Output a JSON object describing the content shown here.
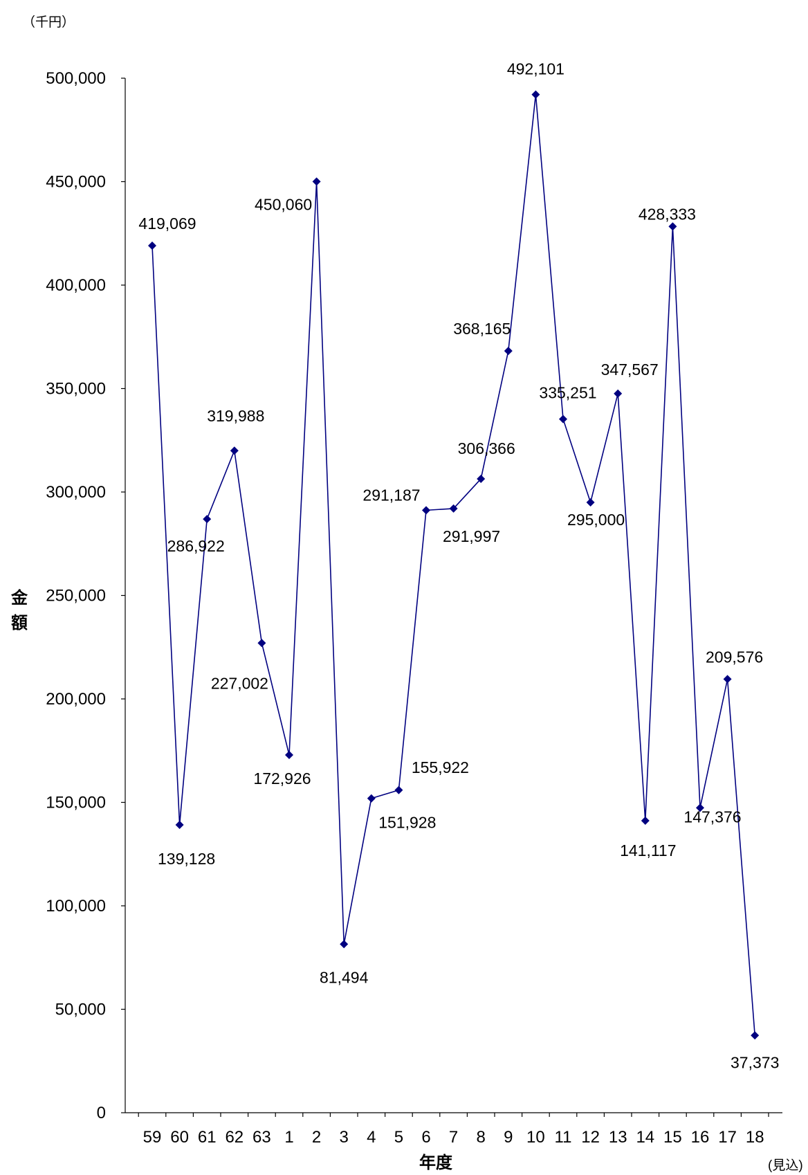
{
  "chart_data": {
    "type": "line",
    "unit_label": "（千円）",
    "ylabel": "金額",
    "xlabel": "年度",
    "x_note": "(見込)",
    "ylim": [
      0,
      500000
    ],
    "y_ticks": [
      0,
      50000,
      100000,
      150000,
      200000,
      250000,
      300000,
      350000,
      400000,
      450000,
      500000
    ],
    "y_tick_labels": [
      "0",
      "50,000",
      "100,000",
      "150,000",
      "200,000",
      "250,000",
      "300,000",
      "350,000",
      "400,000",
      "450,000",
      "500,000"
    ],
    "categories": [
      "59",
      "60",
      "61",
      "62",
      "63",
      "1",
      "2",
      "3",
      "4",
      "5",
      "6",
      "7",
      "8",
      "9",
      "10",
      "11",
      "12",
      "13",
      "14",
      "15",
      "16",
      "17",
      "18"
    ],
    "series": [
      {
        "values": [
          419069,
          139128,
          286922,
          319988,
          227002,
          172926,
          450060,
          81494,
          151928,
          155922,
          291187,
          291997,
          306366,
          368165,
          492101,
          335251,
          295000,
          347567,
          141117,
          428333,
          147376,
          209576,
          37373
        ],
        "labels": [
          "419,069",
          "139,128",
          "286,922",
          "319,988",
          "227,002",
          "172,926",
          "450,060",
          "81,494",
          "151,928",
          "155,922",
          "291,187",
          "291,997",
          "306,366",
          "368,165",
          "492,101",
          "335,251",
          "295,000",
          "347,567",
          "141,117",
          "428,333",
          "147,376",
          "209,576",
          "37,373"
        ]
      }
    ],
    "colors": {
      "line": "#000080",
      "marker": "#000080",
      "axis": "#000000"
    },
    "grid": false,
    "legend": "none"
  }
}
